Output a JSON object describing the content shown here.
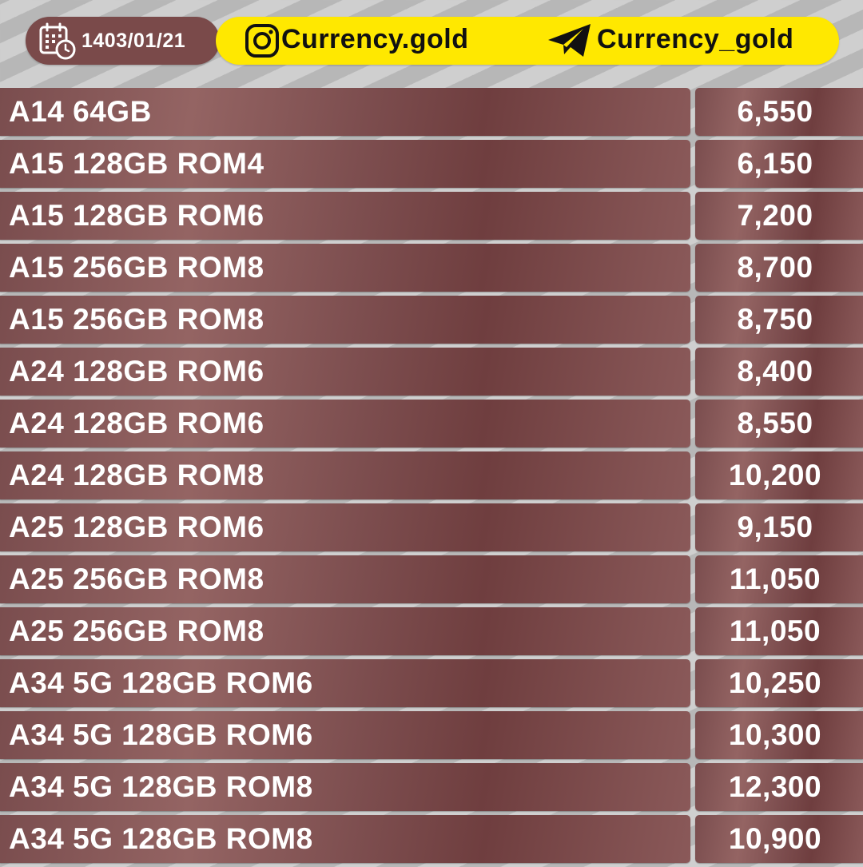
{
  "header": {
    "date": "1403/01/21",
    "instagram_handle": "Currency.gold",
    "telegram_handle": "Currency_gold",
    "icons": {
      "date": "calendar-clock-icon",
      "instagram": "instagram-icon",
      "telegram": "telegram-icon"
    },
    "colors": {
      "date_pill": "#7a4a4a",
      "social_pill": "#ffe800",
      "row_background": "#8a5a5a"
    }
  },
  "rows": [
    {
      "name": "A14 64GB",
      "price": "6,550"
    },
    {
      "name": "A15 128GB ROM4",
      "price": "6,150"
    },
    {
      "name": "A15 128GB ROM6",
      "price": "7,200"
    },
    {
      "name": "A15 256GB ROM8",
      "price": "8,700"
    },
    {
      "name": "A15 256GB ROM8",
      "price": "8,750"
    },
    {
      "name": "A24 128GB ROM6",
      "price": "8,400"
    },
    {
      "name": "A24 128GB ROM6",
      "price": "8,550"
    },
    {
      "name": "A24 128GB ROM8",
      "price": "10,200"
    },
    {
      "name": "A25 128GB ROM6",
      "price": "9,150"
    },
    {
      "name": "A25 256GB ROM8",
      "price": "11,050"
    },
    {
      "name": "A25 256GB ROM8",
      "price": "11,050"
    },
    {
      "name": "A34 5G 128GB ROM6",
      "price": "10,250"
    },
    {
      "name": "A34 5G 128GB ROM6",
      "price": "10,300"
    },
    {
      "name": "A34 5G 128GB ROM8",
      "price": "12,300"
    },
    {
      "name": "A34 5G 128GB ROM8",
      "price": "10,900"
    }
  ]
}
